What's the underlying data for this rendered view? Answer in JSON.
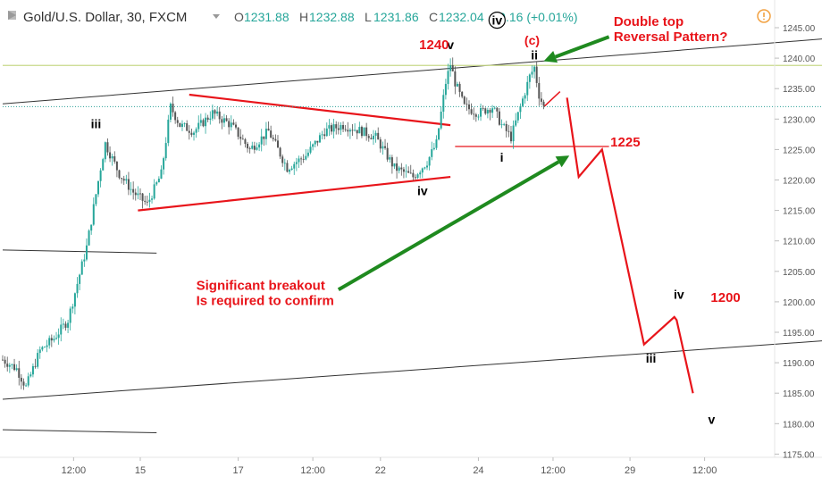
{
  "header": {
    "symbol": "Gold/U.S. Dollar, 30, FXCM",
    "open_label": "O",
    "open": "1231.88",
    "high_label": "H",
    "high": "1232.88",
    "low_label": "L",
    "low": "1231.86",
    "close_label": "C",
    "close": "1232.04",
    "change": "+0.16 (+0.01%)",
    "alert_icon": "alert-circle-icon",
    "collapse_icon": "collapse-icon",
    "dropdown_icon": "chevron-down-icon"
  },
  "colors": {
    "up_candle": "#26a69a",
    "down_candle": "#555555",
    "annotation_red": "#e8141a",
    "arrow_green": "#1f8a1f",
    "resistance_line": "#c8d98a",
    "price_dotted": "#2aa198",
    "channel": "#333333"
  },
  "chart_data": {
    "type": "candlestick",
    "title": "Gold/U.S. Dollar, 30, FXCM",
    "ylim": [
      1175,
      1248
    ],
    "y_ticks": [
      "1245.00",
      "1240.00",
      "1235.00",
      "1230.00",
      "1225.00",
      "1220.00",
      "1215.00",
      "1210.00",
      "1205.00",
      "1200.00",
      "1195.00",
      "1190.00",
      "1185.00",
      "1180.00",
      "1175.00"
    ],
    "x_ticks": [
      "12:00",
      "15",
      "17",
      "12:00",
      "22",
      "24",
      "12:00",
      "29",
      "12:00"
    ],
    "price_path": [
      {
        "t": 0,
        "p": 1190.5
      },
      {
        "t": 3,
        "p": 1189
      },
      {
        "t": 5,
        "p": 1186
      },
      {
        "t": 8,
        "p": 1192
      },
      {
        "t": 11,
        "p": 1194
      },
      {
        "t": 14,
        "p": 1197
      },
      {
        "t": 18,
        "p": 1209
      },
      {
        "t": 21,
        "p": 1222
      },
      {
        "t": 22,
        "p": 1226
      },
      {
        "t": 25,
        "p": 1221
      },
      {
        "t": 28,
        "p": 1218
      },
      {
        "t": 31,
        "p": 1216
      },
      {
        "t": 34,
        "p": 1221
      },
      {
        "t": 36,
        "p": 1232
      },
      {
        "t": 38,
        "p": 1229
      },
      {
        "t": 41,
        "p": 1228
      },
      {
        "t": 45,
        "p": 1231
      },
      {
        "t": 49,
        "p": 1229
      },
      {
        "t": 53,
        "p": 1225
      },
      {
        "t": 57,
        "p": 1228
      },
      {
        "t": 61,
        "p": 1222
      },
      {
        "t": 65,
        "p": 1224
      },
      {
        "t": 69,
        "p": 1228
      },
      {
        "t": 73,
        "p": 1229
      },
      {
        "t": 77,
        "p": 1228
      },
      {
        "t": 80,
        "p": 1227
      },
      {
        "t": 84,
        "p": 1222
      },
      {
        "t": 88,
        "p": 1220.5
      },
      {
        "t": 91,
        "p": 1223
      },
      {
        "t": 93,
        "p": 1226
      },
      {
        "t": 95,
        "p": 1236
      },
      {
        "t": 96,
        "p": 1239
      },
      {
        "t": 97,
        "p": 1236
      },
      {
        "t": 99,
        "p": 1232
      },
      {
        "t": 102,
        "p": 1231
      },
      {
        "t": 105,
        "p": 1232
      },
      {
        "t": 107,
        "p": 1229
      },
      {
        "t": 109,
        "p": 1227
      },
      {
        "t": 111,
        "p": 1232
      },
      {
        "t": 113,
        "p": 1237
      },
      {
        "t": 114,
        "p": 1238.5
      },
      {
        "t": 115,
        "p": 1234
      },
      {
        "t": 116,
        "p": 1232
      }
    ],
    "wave_labels": [
      {
        "text": "iii",
        "t": 20,
        "p": 1228.5,
        "color": "#000000"
      },
      {
        "text": "iv",
        "t": 90,
        "p": 1217.5,
        "color": "#000000"
      },
      {
        "text": "v",
        "t": 96,
        "p": 1241.5,
        "color": "#000000"
      },
      {
        "text": "i",
        "t": 107,
        "p": 1223,
        "color": "#000000"
      },
      {
        "text": "ii",
        "t": 114,
        "p": 1239.8,
        "color": "#000000"
      },
      {
        "text": "(c)",
        "t": 113.5,
        "p": 1242.2,
        "color": "#e8141a"
      },
      {
        "text": "iv",
        "t": 106,
        "p": 1245.5,
        "color": "#000000",
        "circled": true
      },
      {
        "text": "iii",
        "t": 139,
        "p": 1190,
        "color": "#000000"
      },
      {
        "text": "iv",
        "t": 145,
        "p": 1200.5,
        "color": "#000000"
      },
      {
        "text": "v",
        "t": 152,
        "p": 1180,
        "color": "#000000"
      }
    ],
    "price_labels": [
      {
        "text": "1240",
        "t": 92.5,
        "p": 1241.5
      },
      {
        "text": "1225",
        "t": 133.5,
        "p": 1225.5
      },
      {
        "text": "1200",
        "t": 155,
        "p": 1200
      }
    ],
    "annotations": [
      {
        "text": "Double top\nReversal Pattern?",
        "t": 131,
        "p": 1245.3
      },
      {
        "text": "Significant breakout\nIs required to confirm",
        "t": 41.5,
        "p": 1202
      }
    ],
    "projection_path": [
      {
        "t": 121,
        "p": 1233.5
      },
      {
        "t": 123.5,
        "p": 1220.5
      },
      {
        "t": 128.5,
        "p": 1225
      },
      {
        "t": 137.5,
        "p": 1193
      },
      {
        "t": 144,
        "p": 1197.5
      },
      {
        "t": 144.5,
        "p": 1197
      },
      {
        "t": 148,
        "p": 1185
      }
    ],
    "lines": [
      {
        "kind": "triangle-upper",
        "t1": 40,
        "p1": 1234,
        "t2": 96,
        "p2": 1229
      },
      {
        "kind": "triangle-lower",
        "t1": 29,
        "p1": 1215,
        "t2": 96,
        "p2": 1220.5
      },
      {
        "kind": "channel-upper",
        "t1": 0,
        "p1": 1232.5,
        "t2": 165,
        "p2": 1242.5
      },
      {
        "kind": "channel-lower",
        "t1": 0,
        "p1": 1184,
        "t2": 165,
        "p2": 1193
      },
      {
        "kind": "left-bar-upper",
        "t1": 0,
        "p1": 1208.5,
        "t2": 33,
        "p2": 1208
      },
      {
        "kind": "left-bar-lower",
        "t1": 0,
        "p1": 1179,
        "t2": 33,
        "p2": 1178.5
      },
      {
        "kind": "resistance",
        "t1": 0,
        "p1": 1238.8,
        "t2": 165,
        "p2": 1238.8
      },
      {
        "kind": "support-1225",
        "t1": 97,
        "p1": 1225.5,
        "t2": 130,
        "p2": 1225.5
      },
      {
        "kind": "breakdown-tick",
        "t1": 116,
        "p1": 1232,
        "t2": 119.5,
        "p2": 1234.5
      },
      {
        "kind": "current-price",
        "t1": 0,
        "p1": 1232.04,
        "t2": 165,
        "p2": 1232.04
      }
    ],
    "arrows": [
      {
        "from_t": 72,
        "from_p": 1202,
        "to_t": 121.5,
        "to_p": 1224,
        "color": "#1f8a1f"
      },
      {
        "from_t": 130,
        "from_p": 1243.5,
        "to_t": 116,
        "to_p": 1239.5,
        "color": "#1f8a1f"
      }
    ]
  }
}
